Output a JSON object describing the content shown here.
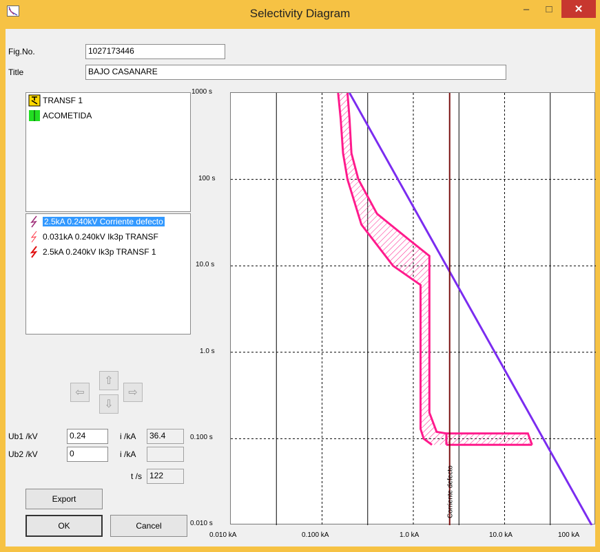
{
  "window": {
    "title": "Selectivity Diagram"
  },
  "fields": {
    "fig_no_label": "Fig.No.",
    "fig_no_value": "1027173446",
    "title_label": "Title",
    "title_value": "BAJO CASANARE"
  },
  "devices": [
    {
      "label": "TRANSF 1",
      "icon": "transformer-icon"
    },
    {
      "label": "ACOMETIDA",
      "icon": "cable-icon"
    }
  ],
  "faults": [
    {
      "label": "2.5kA 0.240kV Corriente defecto",
      "icon": "fault-icon",
      "color": "#a0307a",
      "selected": true
    },
    {
      "label": "0.031kA 0.240kV Ik3p TRANSF",
      "icon": "fault-icon",
      "color": "#ff3040"
    },
    {
      "label": "2.5kA 0.240kV Ik3p TRANSF 1",
      "icon": "fault-icon",
      "color": "#e01010"
    }
  ],
  "params": {
    "ub1_label": "Ub1 /kV",
    "ub1_value": "0.24",
    "ub2_label": "Ub2 /kV",
    "ub2_value": "0",
    "i1_label": "i /kA",
    "i1_value": "36.4",
    "i2_label": "i /kA",
    "i2_value": "",
    "t_label": "t /s",
    "t_value": "122"
  },
  "buttons": {
    "export": "Export",
    "ok": "OK",
    "cancel": "Cancel"
  },
  "chart_data": {
    "type": "line",
    "xscale": "log",
    "yscale": "log",
    "xlim": [
      0.01,
      100
    ],
    "ylim": [
      0.01,
      1000
    ],
    "x_ticks": [
      "0.010 kA",
      "0.100 kA",
      "1.0 kA",
      "10.0 kA",
      "100 kA"
    ],
    "y_ticks": [
      "0.010 s",
      "0.100 s",
      "1.0 s",
      "10.0 s",
      "100 s",
      "1000 s"
    ],
    "grid": true,
    "colors": {
      "breaker": "#ff1a8c",
      "transformer": "#7b2cf0",
      "fault": "#7a1010"
    },
    "series": [
      {
        "kind": "breaker-band-left",
        "x": [
          0.15,
          0.16,
          0.17,
          0.19,
          0.27,
          0.6,
          1.2,
          1.2,
          1.2,
          1.3,
          1.6
        ],
        "y": [
          1000,
          500,
          200,
          100,
          30,
          10,
          6,
          1,
          0.13,
          0.1,
          0.085
        ]
      },
      {
        "kind": "breaker-band-right",
        "x": [
          0.19,
          0.2,
          0.21,
          0.25,
          0.4,
          0.9,
          1.5,
          1.5,
          1.5,
          1.8,
          2.3,
          2.3
        ],
        "y": [
          1000,
          500,
          200,
          100,
          40,
          20,
          13,
          5,
          0.2,
          0.12,
          0.115,
          0.085
        ]
      },
      {
        "kind": "breaker-instantaneous",
        "x": [
          2.3,
          18,
          20
        ],
        "y": [
          0.115,
          0.115,
          0.085
        ]
      },
      {
        "kind": "transformer-damage",
        "x": [
          0.2,
          90
        ],
        "y": [
          1000,
          0.01
        ]
      },
      {
        "kind": "fault-current",
        "x": [
          2.5,
          2.5
        ],
        "y": [
          1000,
          0.01
        ]
      }
    ],
    "annotations": [
      {
        "text": "Corriente defecto",
        "x": 2.5
      }
    ]
  }
}
